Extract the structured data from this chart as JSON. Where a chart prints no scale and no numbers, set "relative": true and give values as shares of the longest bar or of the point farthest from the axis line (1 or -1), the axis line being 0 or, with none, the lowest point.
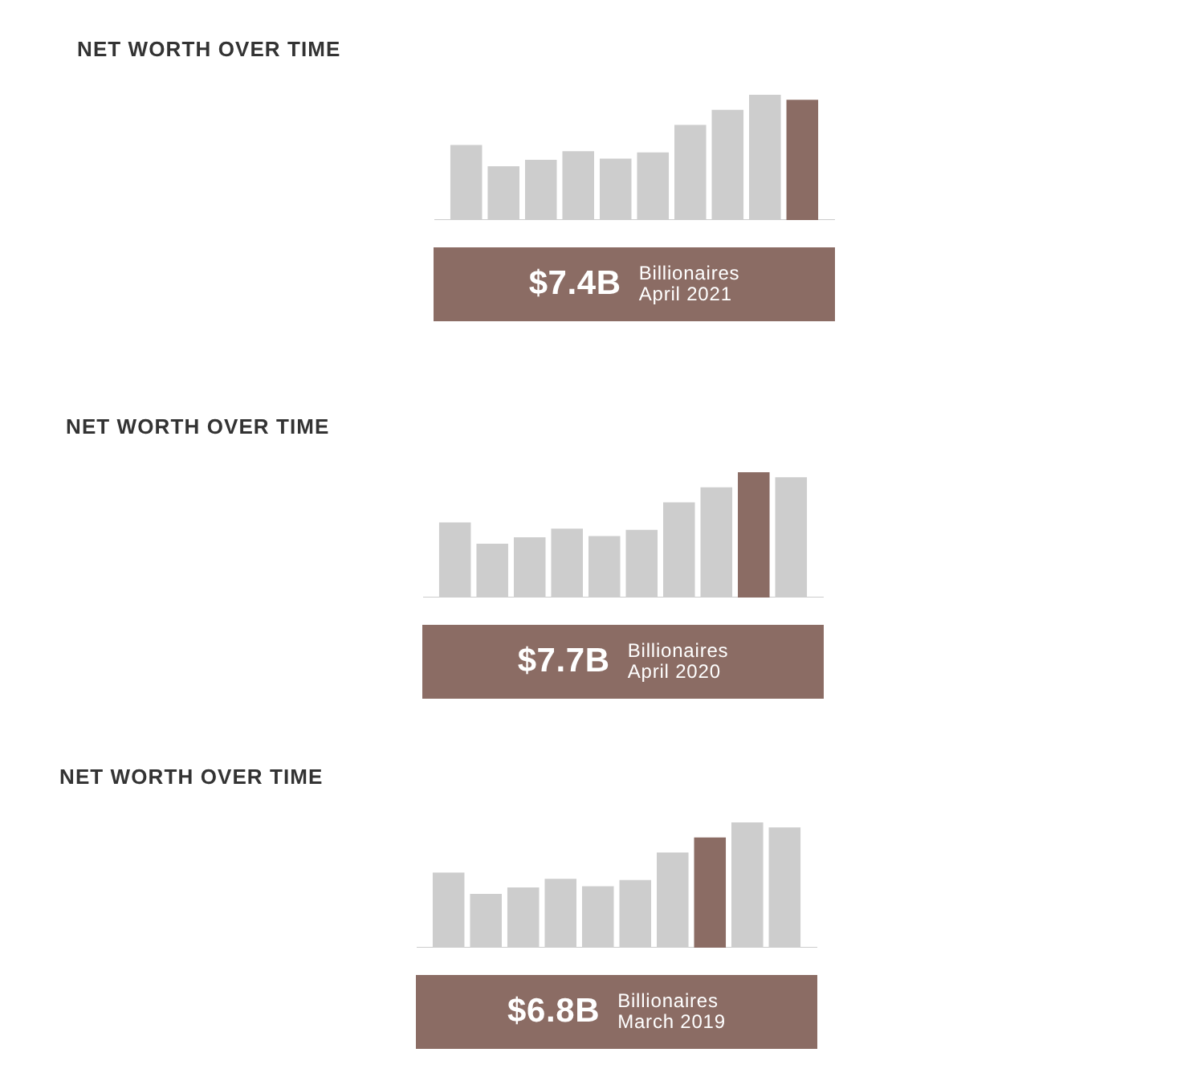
{
  "chart_data": [
    {
      "type": "bar",
      "title": "NET WORTH OVER TIME",
      "categories": [
        null,
        null,
        null,
        null,
        null,
        null,
        null,
        null,
        null,
        null
      ],
      "values": [
        0.6,
        0.43,
        0.48,
        0.55,
        0.49,
        0.54,
        0.76,
        0.88,
        1,
        0.96
      ],
      "colors": [
        "#cdcdcd",
        "#cdcdcd",
        "#cdcdcd",
        "#cdcdcd",
        "#cdcdcd",
        "#cdcdcd",
        "#cdcdcd",
        "#cdcdcd",
        "#cdcdcd",
        "#8b6c64"
      ],
      "relative": true,
      "annotations": [
        "$7.4B",
        "Billionaires",
        "April 2021"
      ]
    },
    {
      "type": "bar",
      "title": "NET WORTH OVER TIME",
      "categories": [
        null,
        null,
        null,
        null,
        null,
        null,
        null,
        null,
        null,
        null
      ],
      "values": [
        0.6,
        0.43,
        0.48,
        0.55,
        0.49,
        0.54,
        0.76,
        0.88,
        1,
        0.96
      ],
      "colors": [
        "#cdcdcd",
        "#cdcdcd",
        "#cdcdcd",
        "#cdcdcd",
        "#cdcdcd",
        "#cdcdcd",
        "#cdcdcd",
        "#cdcdcd",
        "#8b6c64",
        "#cdcdcd"
      ],
      "relative": true,
      "annotations": [
        "$7.7B",
        "Billionaires",
        "April 2020"
      ]
    },
    {
      "type": "bar",
      "title": "NET WORTH OVER TIME",
      "categories": [
        null,
        null,
        null,
        null,
        null,
        null,
        null,
        null,
        null,
        null
      ],
      "values": [
        0.6,
        0.43,
        0.48,
        0.55,
        0.49,
        0.54,
        0.76,
        0.88,
        1,
        0.96
      ],
      "colors": [
        "#cdcdcd",
        "#cdcdcd",
        "#cdcdcd",
        "#cdcdcd",
        "#cdcdcd",
        "#cdcdcd",
        "#cdcdcd",
        "#8b6c64",
        "#cdcdcd",
        "#cdcdcd"
      ],
      "relative": true,
      "annotations": [
        "$6.8B",
        "Billionaires",
        "March 2019"
      ]
    }
  ]
}
